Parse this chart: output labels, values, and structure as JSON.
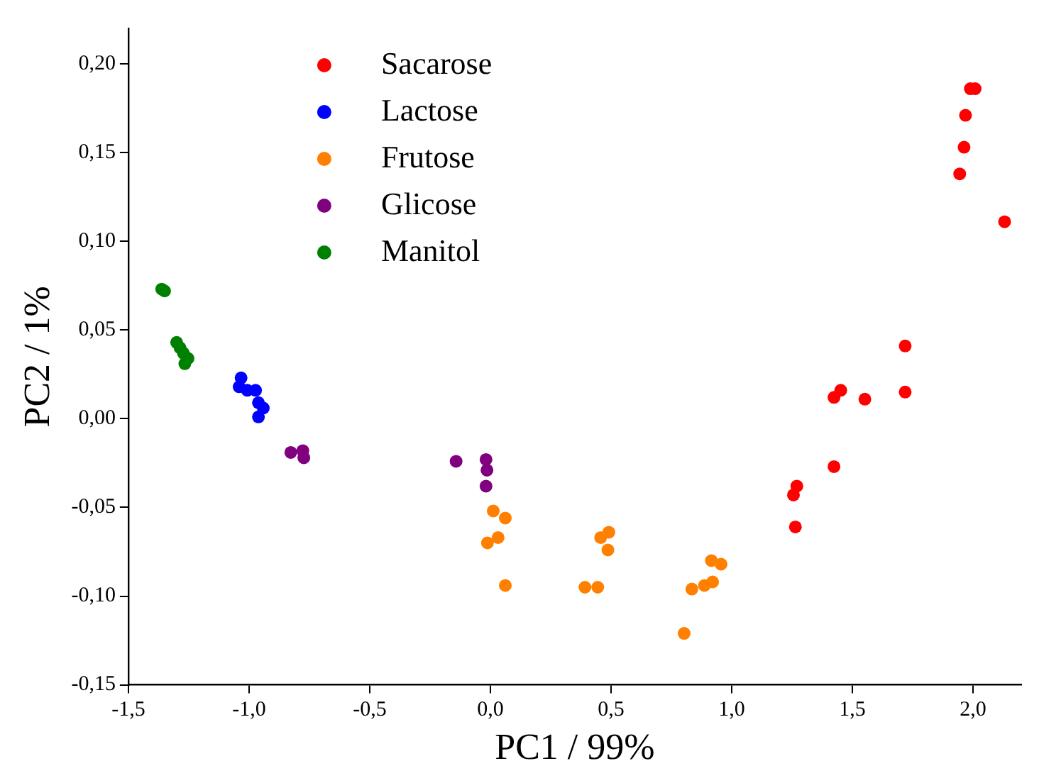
{
  "chart_data": {
    "type": "scatter",
    "xlabel": "PC1 / 99%",
    "ylabel": "PC2 / 1%",
    "xlim": [
      -1.5,
      2.2
    ],
    "ylim": [
      -0.15,
      0.22
    ],
    "xticks": [
      {
        "value": -1.5,
        "label": "-1,5"
      },
      {
        "value": -1,
        "label": "-1,0"
      },
      {
        "value": -0.5,
        "label": "-0,5"
      },
      {
        "value": 0,
        "label": "0,0"
      },
      {
        "value": 0.5,
        "label": "0,5"
      },
      {
        "value": 1,
        "label": "1,0"
      },
      {
        "value": 1.5,
        "label": "1,5"
      },
      {
        "value": 2,
        "label": "2,0"
      }
    ],
    "yticks": [
      {
        "value": -0.15,
        "label": "-0,15"
      },
      {
        "value": -0.1,
        "label": "-0,10"
      },
      {
        "value": -0.05,
        "label": "-0,05"
      },
      {
        "value": 0,
        "label": "0,00"
      },
      {
        "value": 0.05,
        "label": "0,05"
      },
      {
        "value": 0.1,
        "label": "0,10"
      },
      {
        "value": 0.15,
        "label": "0,15"
      },
      {
        "value": 0.2,
        "label": "0,20"
      }
    ],
    "grid": false,
    "legend": "top left",
    "marker": "circle",
    "series": [
      {
        "name": "Sacarose",
        "color": "#ff0000",
        "x": [
          1.989,
          2.009,
          1.969,
          1.963,
          1.945,
          2.131,
          1.719,
          1.719,
          1.424,
          1.452,
          1.552,
          1.424,
          1.27,
          1.256,
          1.264
        ],
        "values": [
          0.186,
          0.186,
          0.171,
          0.153,
          0.138,
          0.111,
          0.041,
          0.015,
          0.012,
          0.016,
          0.011,
          -0.027,
          -0.038,
          -0.043,
          -0.061
        ]
      },
      {
        "name": "Lactose",
        "color": "#0000ff",
        "x": [
          -1.033,
          -1.041,
          -1.007,
          -0.973,
          -0.961,
          -0.941,
          -0.961
        ],
        "values": [
          0.023,
          0.018,
          0.016,
          0.016,
          0.009,
          0.006,
          0.001
        ]
      },
      {
        "name": "Frutose",
        "color": "#ff8000",
        "x": [
          0.012,
          0.062,
          -0.012,
          0.032,
          0.062,
          0.392,
          0.445,
          0.457,
          0.491,
          0.487,
          0.916,
          0.956,
          0.835,
          0.887,
          0.921,
          0.803
        ],
        "values": [
          -0.052,
          -0.056,
          -0.07,
          -0.067,
          -0.094,
          -0.095,
          -0.095,
          -0.067,
          -0.064,
          -0.074,
          -0.08,
          -0.082,
          -0.096,
          -0.094,
          -0.092,
          -0.121
        ]
      },
      {
        "name": "Glicose",
        "color": "#800080",
        "x": [
          -0.827,
          -0.777,
          -0.773,
          -0.142,
          -0.018,
          -0.014,
          -0.018
        ],
        "values": [
          -0.019,
          -0.018,
          -0.022,
          -0.024,
          -0.023,
          -0.029,
          -0.038
        ]
      },
      {
        "name": "Manitol",
        "color": "#008000",
        "x": [
          -1.362,
          -1.35,
          -1.3,
          -1.286,
          -1.272,
          -1.253,
          -1.266
        ],
        "values": [
          0.073,
          0.072,
          0.043,
          0.04,
          0.037,
          0.034,
          0.031
        ]
      }
    ]
  }
}
